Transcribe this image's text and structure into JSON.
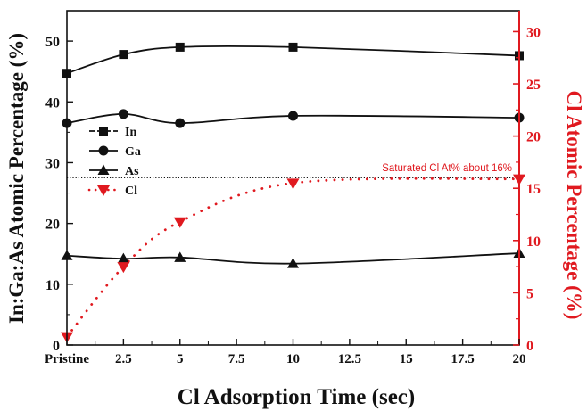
{
  "chart_data": {
    "type": "line",
    "xlabel": "Cl Adsorption Time (sec)",
    "ylabel_left": "In:Ga:As Atomic Percentage (%)",
    "ylabel_right": "Cl Atomic Percentage (%)",
    "xlim": [
      0,
      20
    ],
    "ylim_left": [
      0,
      55
    ],
    "ylim_right": [
      0,
      32
    ],
    "x_ticks": [
      {
        "value": 0,
        "label": "Pristine"
      },
      {
        "value": 2.5,
        "label": "2.5"
      },
      {
        "value": 5,
        "label": "5"
      },
      {
        "value": 7.5,
        "label": "7.5"
      },
      {
        "value": 10,
        "label": "10"
      },
      {
        "value": 12.5,
        "label": "12.5"
      },
      {
        "value": 15,
        "label": "15"
      },
      {
        "value": 17.5,
        "label": "17.5"
      },
      {
        "value": 20,
        "label": "20"
      }
    ],
    "y_ticks_left": [
      0,
      10,
      20,
      30,
      40,
      50
    ],
    "y_ticks_right": [
      0,
      5,
      10,
      15,
      20,
      25,
      30
    ],
    "grid": false,
    "legend_position": "left-middle",
    "colors": {
      "black": "#111111",
      "red": "#e0191f"
    },
    "series": [
      {
        "name": "In",
        "axis": "left",
        "marker": "square",
        "line": "solid",
        "color": "#111111",
        "x": [
          0,
          2.5,
          5,
          10,
          20
        ],
        "y": [
          44.7,
          47.8,
          49.0,
          49.0,
          47.6
        ]
      },
      {
        "name": "Ga",
        "axis": "left",
        "marker": "circle",
        "line": "solid",
        "color": "#111111",
        "x": [
          0,
          2.5,
          5,
          10,
          20
        ],
        "y": [
          36.5,
          38.0,
          36.5,
          37.7,
          37.4
        ]
      },
      {
        "name": "As",
        "axis": "left",
        "marker": "triangle",
        "line": "solid",
        "color": "#111111",
        "x": [
          0,
          2.5,
          5,
          10,
          20
        ],
        "y": [
          14.7,
          14.2,
          14.4,
          13.4,
          15.1
        ]
      },
      {
        "name": "Cl",
        "axis": "right",
        "marker": "triangle-down",
        "line": "dotted",
        "color": "#e0191f",
        "x": [
          0,
          2.5,
          5,
          10,
          20
        ],
        "y": [
          0.8,
          7.5,
          11.8,
          15.5,
          15.9
        ]
      }
    ],
    "reference_line": {
      "axis": "right",
      "value": 16,
      "style": "dotted",
      "color": "#111111"
    },
    "annotation": {
      "text": "Saturated Cl At% about 16%",
      "color": "#e0191f"
    }
  }
}
